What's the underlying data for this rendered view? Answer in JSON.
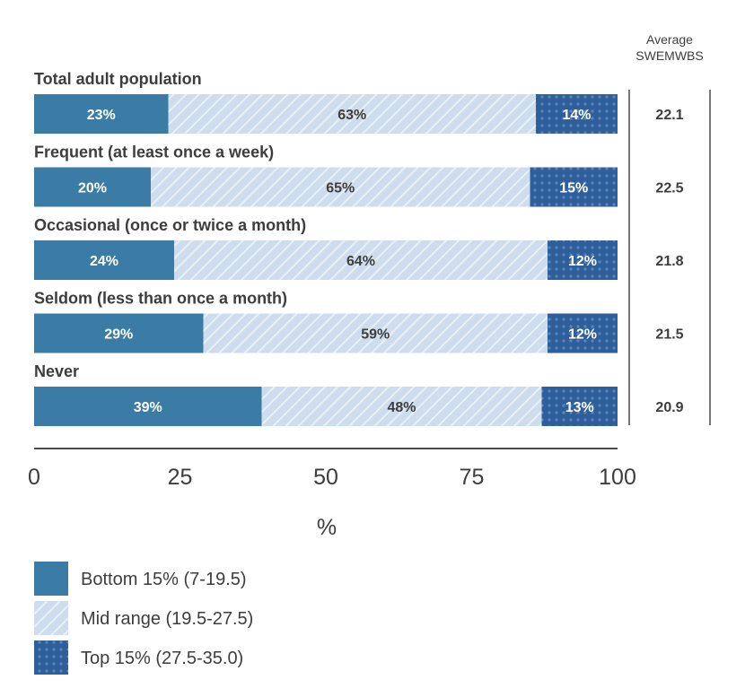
{
  "chart_data": {
    "type": "bar",
    "orientation": "horizontal-stacked",
    "categories": [
      "Total adult population",
      "Frequent (at least once a week)",
      "Occasional (once or twice a month)",
      "Seldom (less than once a month)",
      "Never"
    ],
    "series": [
      {
        "name": "Bottom 15% (7-19.5)",
        "values": [
          23,
          20,
          24,
          29,
          39
        ],
        "labels": [
          "23%",
          "20%",
          "24%",
          "29%",
          "39%"
        ],
        "color": "#3a7ca5",
        "pattern": "solid"
      },
      {
        "name": "Mid range (19.5-27.5)",
        "values": [
          63,
          65,
          64,
          59,
          48
        ],
        "labels": [
          "63%",
          "65%",
          "64%",
          "59%",
          "48%"
        ],
        "color": "#c9dbe8",
        "pattern": "hatch"
      },
      {
        "name": "Top 15% (27.5-35.0)",
        "values": [
          14,
          15,
          12,
          12,
          13
        ],
        "labels": [
          "14%",
          "15%",
          "12%",
          "12%",
          "13%"
        ],
        "color": "#2f5f9b",
        "pattern": "dots"
      }
    ],
    "xlim": [
      0,
      100
    ],
    "xticks": [
      "0",
      "25",
      "50",
      "75",
      "100"
    ],
    "xlabel": "%",
    "average_column": {
      "header_line1": "Average",
      "header_line2": "SWEMWBS",
      "values": [
        "22.1",
        "22.5",
        "21.8",
        "21.5",
        "20.9"
      ]
    },
    "legend_position": "bottom-left"
  }
}
